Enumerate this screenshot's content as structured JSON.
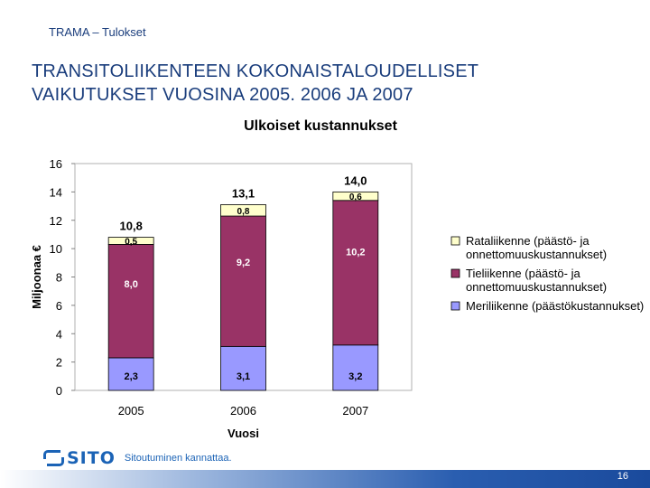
{
  "header": {
    "label": "TRAMA – Tulokset"
  },
  "title": {
    "line1": "TRANSITOLIIKENTEEN  KOKONAISTALOUDELLISET",
    "line2": "VAIKUTUKSET VUOSINA 2005. 2006 JA 2007"
  },
  "footer": {
    "logo": "SITO",
    "tagline": "Sitoutuminen kannattaa.",
    "page_number": "16"
  },
  "colors": {
    "rail": "#ffffcc",
    "road": "#993366",
    "sea": "#9999ff",
    "plot_bg": "#ffffff"
  },
  "chart_data": {
    "type": "bar",
    "stacked": true,
    "title": "Ulkoiset kustannukset",
    "xlabel": "Vuosi",
    "ylabel": "Miljoonaa €",
    "ylim": [
      0,
      16
    ],
    "yticks": [
      "0",
      "2",
      "4",
      "6",
      "8",
      "10",
      "12",
      "14",
      "16"
    ],
    "grid": false,
    "legend_position": "right",
    "categories": [
      "2005",
      "2006",
      "2007"
    ],
    "totals": [
      "10,8",
      "13,1",
      "14,0"
    ],
    "series": [
      {
        "name": "Meriliikenne (päästökustannukset)",
        "values": [
          2.3,
          3.1,
          3.2
        ],
        "labels": [
          "2,3",
          "3,1",
          "3,2"
        ]
      },
      {
        "name": "Tieliikenne (päästö- ja onnettomuuskustannukset)",
        "values": [
          8.0,
          9.2,
          10.2
        ],
        "labels": [
          "8,0",
          "9,2",
          "10,2"
        ]
      },
      {
        "name": "Rataliikenne (päästö- ja onnettomuuskustannukset)",
        "values": [
          0.5,
          0.8,
          0.6
        ],
        "labels": [
          "0,5",
          "0,8",
          "0,6"
        ]
      }
    ]
  }
}
